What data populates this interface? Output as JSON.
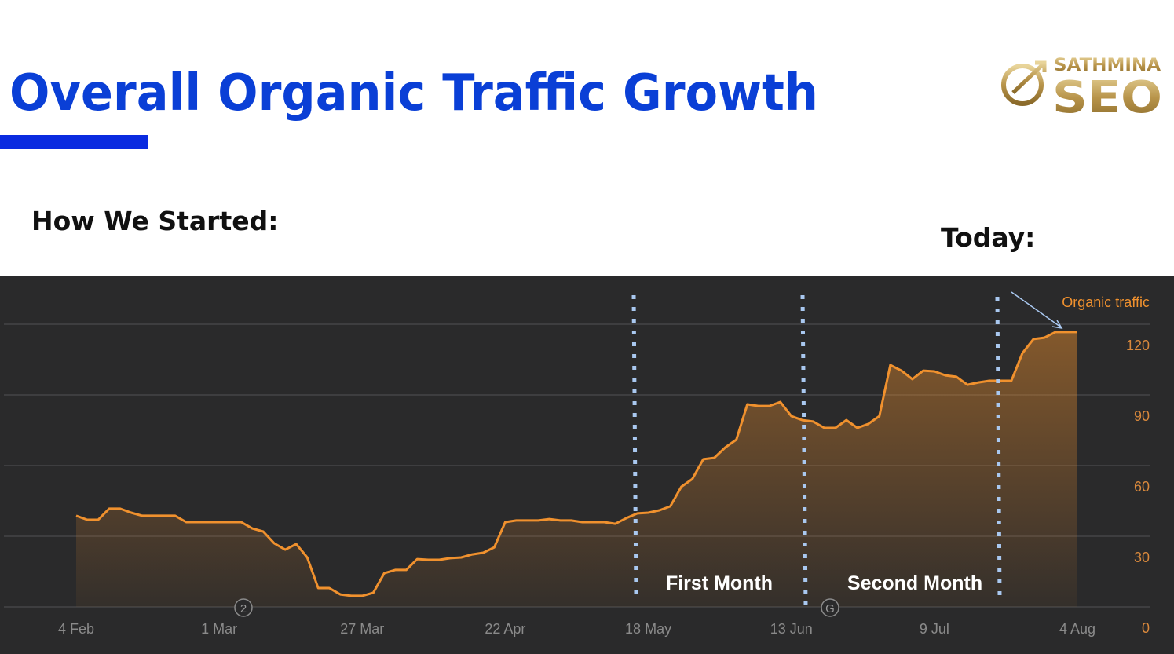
{
  "slide": {
    "title": "Overall Organic Traffic Growth",
    "logo_top": "SATHMINA",
    "logo_bottom": "SEO",
    "left_label": "How We Started:",
    "right_label": "Today:"
  },
  "chart_data": {
    "type": "area",
    "x": [
      "4 Feb",
      "6 Feb",
      "8 Feb",
      "10 Feb",
      "12 Feb",
      "14 Feb",
      "16 Feb",
      "18 Feb",
      "20 Feb",
      "22 Feb",
      "24 Feb",
      "26 Feb",
      "28 Feb",
      "1 Mar",
      "3 Mar",
      "5 Mar",
      "7 Mar",
      "9 Mar",
      "11 Mar",
      "13 Mar",
      "15 Mar",
      "17 Mar",
      "19 Mar",
      "21 Mar",
      "23 Mar",
      "25 Mar",
      "27 Mar",
      "29 Mar",
      "31 Mar",
      "2 Apr",
      "4 Apr",
      "6 Apr",
      "8 Apr",
      "10 Apr",
      "12 Apr",
      "14 Apr",
      "16 Apr",
      "18 Apr",
      "20 Apr",
      "22 Apr",
      "24 Apr",
      "26 Apr",
      "28 Apr",
      "30 Apr",
      "2 May",
      "4 May",
      "6 May",
      "8 May",
      "10 May",
      "12 May",
      "14 May",
      "16 May",
      "18 May",
      "20 May",
      "22 May",
      "24 May",
      "26 May",
      "28 May",
      "30 May",
      "1 Jun",
      "3 Jun",
      "5 Jun",
      "7 Jun",
      "9 Jun",
      "11 Jun",
      "13 Jun",
      "15 Jun",
      "17 Jun",
      "19 Jun",
      "21 Jun",
      "23 Jun",
      "25 Jun",
      "27 Jun",
      "29 Jun",
      "1 Jul",
      "3 Jul",
      "5 Jul",
      "7 Jul",
      "9 Jul",
      "11 Jul",
      "13 Jul",
      "15 Jul",
      "17 Jul",
      "19 Jul",
      "21 Jul",
      "23 Jul",
      "25 Jul",
      "27 Jul",
      "29 Jul",
      "31 Jul",
      "2 Aug",
      "4 Aug"
    ],
    "series": [
      {
        "name": "Organic traffic",
        "color": "#f0912e",
        "values": [
          38.7,
          37,
          37,
          41.7,
          41.7,
          40,
          38.7,
          38.7,
          38.7,
          38.7,
          36,
          36,
          36,
          36,
          36,
          36,
          33.3,
          32,
          27,
          24.3,
          26.7,
          21,
          8,
          8,
          5.3,
          4.7,
          4.7,
          6,
          14.3,
          15.7,
          15.7,
          20.3,
          20,
          20,
          20.7,
          21,
          22.3,
          23,
          25.3,
          36,
          36.7,
          36.7,
          36.7,
          37.3,
          36.7,
          36.7,
          36,
          36,
          36,
          35.3,
          37.7,
          39.7,
          40,
          41,
          42.7,
          51,
          54.3,
          62.7,
          63.3,
          67.7,
          71,
          86,
          85.3,
          85.3,
          87,
          81,
          79.3,
          78.7,
          76,
          76,
          79.3,
          76,
          77.7,
          81,
          102.7,
          100.3,
          96.7,
          100.3,
          100,
          98.3,
          97.7,
          94.3,
          95.3,
          96,
          96,
          96,
          107.7,
          113.7,
          114.3,
          116.7,
          116.7,
          116.7
        ]
      }
    ],
    "ylim": [
      0,
      120
    ],
    "yticks": [
      0,
      30,
      60,
      90,
      120
    ],
    "xticks": [
      "4 Feb",
      "1 Mar",
      "27 Mar",
      "22 Apr",
      "18 May",
      "13 Jun",
      "9 Jul",
      "4 Aug"
    ],
    "grid": true,
    "annotations": [
      "First Month",
      "Second Month"
    ],
    "event_markers": [
      "2",
      "G"
    ]
  }
}
